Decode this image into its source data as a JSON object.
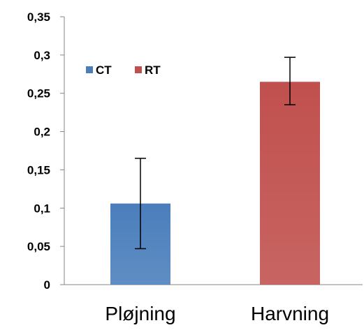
{
  "chart_data": {
    "type": "bar",
    "categories": [
      "Pløjning",
      "Harvning"
    ],
    "series": [
      {
        "name": "CT",
        "color": "#4a7ebb",
        "values": [
          0.106,
          null
        ]
      },
      {
        "name": "RT",
        "color": "#c0504d",
        "values": [
          null,
          0.265
        ]
      }
    ],
    "error_bars": [
      {
        "category": "Pløjning",
        "low": 0.047,
        "high": 0.165
      },
      {
        "category": "Harvning",
        "low": 0.235,
        "high": 0.297
      }
    ],
    "ylim": [
      0,
      0.35
    ],
    "yticks": [
      0,
      0.05,
      0.1,
      0.15,
      0.2,
      0.25,
      0.3,
      0.35
    ],
    "ytick_labels": [
      "0",
      "0,05",
      "0,1",
      "0,15",
      "0,2",
      "0,25",
      "0,3",
      "0,35"
    ],
    "legend": {
      "position": "top-left",
      "entries": [
        "CT",
        "RT"
      ]
    },
    "grid": false,
    "xlabel": "",
    "ylabel": "",
    "title": ""
  }
}
